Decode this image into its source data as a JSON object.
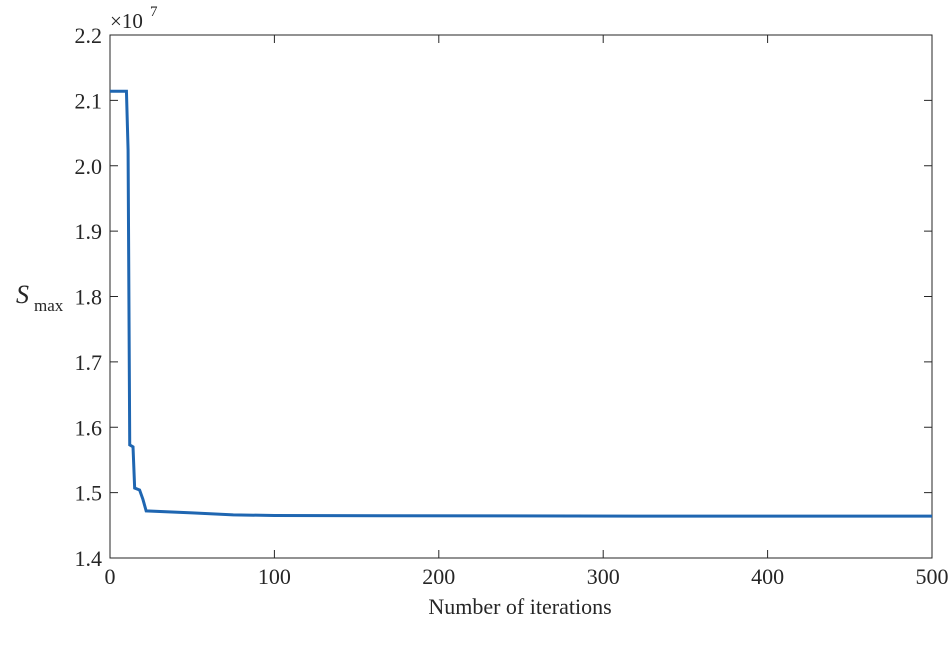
{
  "chart_data": {
    "type": "line",
    "x_label": "Number of iterations",
    "y_label": "S",
    "y_label_sub": "max",
    "y_multiplier": "×10",
    "y_multiplier_exponent": "7",
    "xlim": [
      0,
      500
    ],
    "xticks": [
      0,
      100,
      200,
      300,
      400,
      500
    ],
    "ylim": [
      1.4,
      2.2
    ],
    "yticks": [
      1.4,
      1.5,
      1.6,
      1.7,
      1.8,
      1.9,
      {
        "value": 2,
        "label": "2.0"
      },
      2.1,
      2.2
    ],
    "series": [
      {
        "color": "#1f66b1",
        "x": [
          0,
          10,
          11,
          12,
          14,
          15,
          18,
          20,
          22,
          50,
          75,
          100,
          320,
          500
        ],
        "values": [
          2.114,
          2.114,
          2.024,
          1.573,
          1.57,
          1.507,
          1.504,
          1.49,
          1.472,
          1.469,
          1.466,
          1.465,
          1.464,
          1.464
        ]
      }
    ]
  }
}
